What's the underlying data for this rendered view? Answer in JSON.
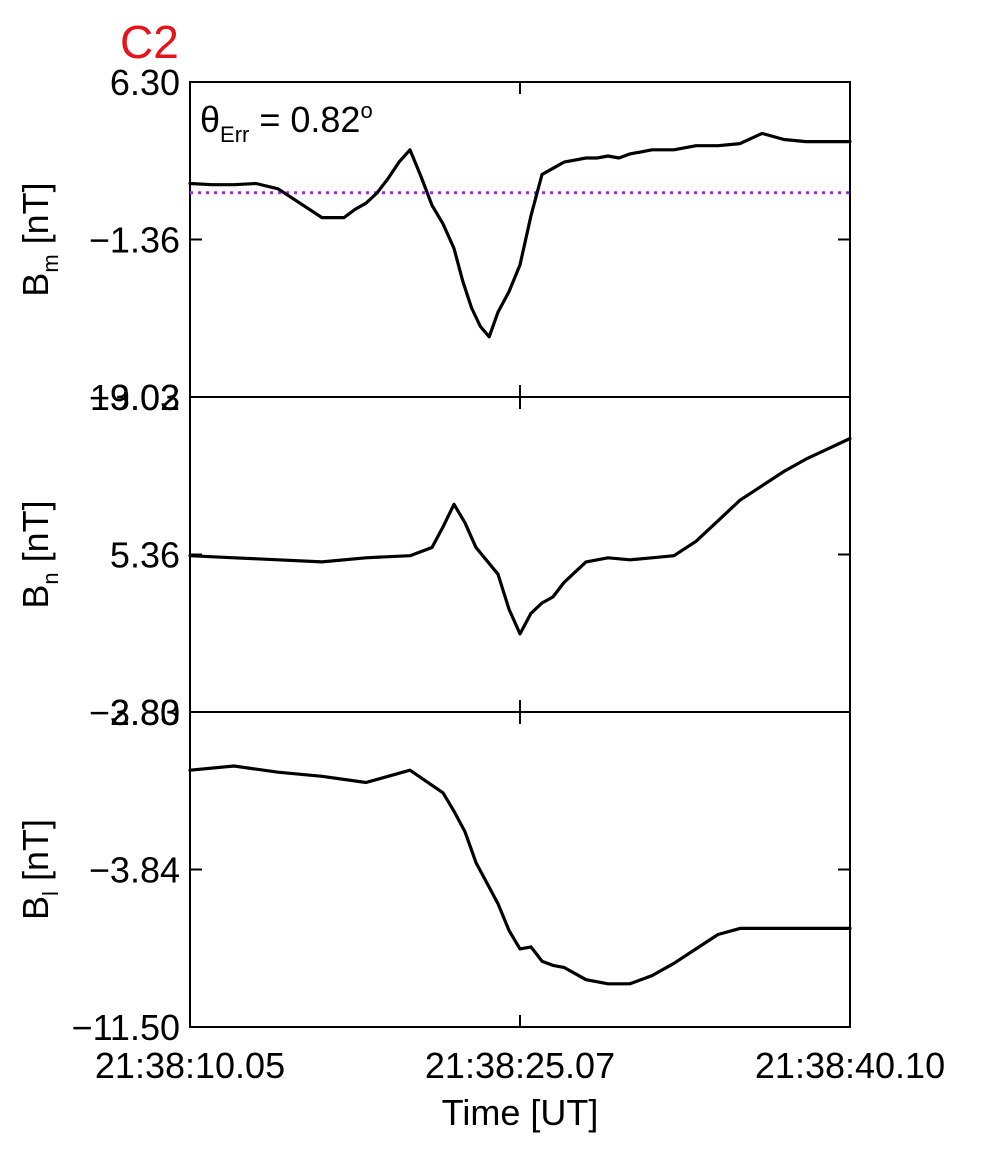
{
  "figure": {
    "panel_tag": "C2",
    "annotation": {
      "symbol": "θ",
      "sub": "Err",
      "text": " =  0.82",
      "sup": "o"
    }
  },
  "chart_data": {
    "type": "line",
    "xlabel": "Time [UT]",
    "x_ticks": [
      "21:38:10.05",
      "21:38:25.07",
      "21:38:40.10"
    ],
    "x_range_s": [
      0,
      30
    ],
    "panels": [
      {
        "id": "bm",
        "ylabel": {
          "main": "B",
          "sub": "m",
          "unit": " [nT]"
        },
        "ylim": [
          -9.03,
          6.3
        ],
        "yticks": [
          "6.30",
          "-1.36",
          "-9.03"
        ],
        "reference_line": 0.91,
        "series": {
          "x": [
            0,
            1,
            2,
            3,
            4,
            5,
            6,
            7,
            7.5,
            8,
            8.5,
            9,
            9.5,
            10,
            10.5,
            11,
            11.5,
            12,
            12.4,
            12.8,
            13.2,
            13.6,
            14,
            14.5,
            15,
            15.5,
            16,
            16.5,
            17,
            17.5,
            18,
            18.5,
            19,
            19.5,
            20,
            20.5,
            21,
            22,
            23,
            24,
            25,
            26,
            27,
            28,
            29,
            30
          ],
          "y": [
            1.36,
            1.3,
            1.3,
            1.36,
            1.1,
            0.4,
            -0.3,
            -0.3,
            0.1,
            0.4,
            0.9,
            1.6,
            2.4,
            3.0,
            1.7,
            0.3,
            -0.6,
            -1.8,
            -3.4,
            -4.7,
            -5.6,
            -6.1,
            -4.9,
            -3.9,
            -2.6,
            -0.2,
            1.8,
            2.1,
            2.4,
            2.5,
            2.6,
            2.6,
            2.7,
            2.6,
            2.8,
            2.9,
            3.0,
            3.0,
            3.2,
            3.2,
            3.3,
            3.8,
            3.5,
            3.4,
            3.4,
            3.4
          ]
        }
      },
      {
        "id": "bn",
        "ylabel": {
          "main": "B",
          "sub": "n",
          "unit": " [nT]"
        },
        "ylim": [
          -2.3,
          13.02
        ],
        "yticks": [
          "13.02",
          "5.36",
          "-2.30"
        ],
        "series": {
          "x": [
            0,
            2,
            4,
            6,
            8,
            10,
            11,
            11.5,
            12,
            12.5,
            13,
            14,
            14.5,
            15,
            15.5,
            16,
            16.5,
            17,
            17.5,
            18,
            19,
            20,
            21,
            22,
            23,
            24,
            25,
            26,
            27,
            28,
            29,
            30
          ],
          "y": [
            5.3,
            5.2,
            5.1,
            5.0,
            5.2,
            5.3,
            5.7,
            6.7,
            7.8,
            6.9,
            5.7,
            4.4,
            2.7,
            1.5,
            2.5,
            3.0,
            3.3,
            4.0,
            4.5,
            5.0,
            5.2,
            5.1,
            5.2,
            5.3,
            6.0,
            7.0,
            8.0,
            8.7,
            9.4,
            10.0,
            10.5,
            11.0
          ]
        }
      },
      {
        "id": "bl",
        "ylabel": {
          "main": "B",
          "sub": "l",
          "unit": " [nT]"
        },
        "ylim": [
          -11.5,
          3.83
        ],
        "yticks": [
          "3.83",
          "-3.84",
          "-11.50"
        ],
        "series": {
          "x": [
            0,
            2,
            4,
            6,
            8,
            10,
            11.5,
            12,
            12.5,
            13,
            14,
            14.5,
            15,
            15.5,
            16,
            16.5,
            17,
            18,
            19,
            20,
            21,
            22,
            23,
            24,
            25,
            26,
            27,
            28,
            29,
            30
          ],
          "y": [
            1.0,
            1.2,
            0.9,
            0.7,
            0.4,
            1.0,
            -0.1,
            -1.0,
            -2.0,
            -3.5,
            -5.5,
            -6.8,
            -7.7,
            -7.6,
            -8.3,
            -8.5,
            -8.6,
            -9.2,
            -9.4,
            -9.4,
            -9.0,
            -8.4,
            -7.7,
            -7.0,
            -6.7,
            -6.7,
            -6.7,
            -6.7,
            -6.7,
            -6.7
          ]
        }
      }
    ]
  }
}
